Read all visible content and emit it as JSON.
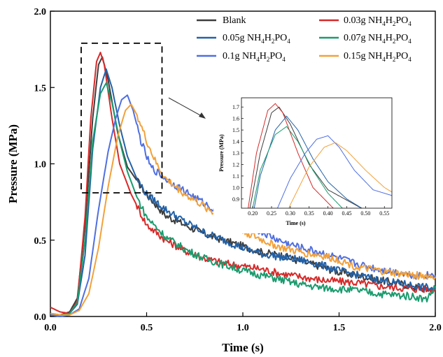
{
  "chart_data": {
    "type": "line",
    "xlabel": "Time (s)",
    "ylabel": "Pressure (MPa)",
    "xlim": [
      0,
      2
    ],
    "ylim": [
      0,
      2
    ],
    "xticks": [
      "0.0",
      "0.5",
      "1.0",
      "1.5",
      "2.0"
    ],
    "yticks": [
      "0.0",
      "0.5",
      "1.0",
      "1.5",
      "2.0"
    ],
    "legend": {
      "position": "top-right",
      "columns": 2,
      "entries": [
        {
          "series": 0,
          "prefix": "Blank",
          "amount": "",
          "formula": false
        },
        {
          "series": 1,
          "prefix": "0.03g NH",
          "amount": "0.03g",
          "formula": true
        },
        {
          "series": 2,
          "prefix": "0.05g NH",
          "amount": "0.05g",
          "formula": true
        },
        {
          "series": 3,
          "prefix": "0.07g NH",
          "amount": "0.07g",
          "formula": true
        },
        {
          "series": 4,
          "prefix": "0.1g NH",
          "amount": "0.1g",
          "formula": true
        },
        {
          "series": 5,
          "prefix": "0.15g NH",
          "amount": "0.15g",
          "formula": true
        }
      ],
      "formula_parts": {
        "sub1": "4",
        "mid1": "H",
        "sub2": "2",
        "mid2": "PO",
        "sub3": "4"
      }
    },
    "series": [
      {
        "name": "Blank",
        "color": "#3d3d3d",
        "points": [
          [
            0,
            0.02
          ],
          [
            0.05,
            0.01
          ],
          [
            0.1,
            0.03
          ],
          [
            0.14,
            0.12
          ],
          [
            0.18,
            0.6
          ],
          [
            0.22,
            1.3
          ],
          [
            0.25,
            1.65
          ],
          [
            0.27,
            1.7
          ],
          [
            0.3,
            1.55
          ],
          [
            0.35,
            1.2
          ],
          [
            0.4,
            0.98
          ],
          [
            0.5,
            0.8
          ],
          [
            0.6,
            0.66
          ],
          [
            0.7,
            0.6
          ],
          [
            0.8,
            0.54
          ],
          [
            0.9,
            0.5
          ],
          [
            1.0,
            0.46
          ],
          [
            1.1,
            0.42
          ],
          [
            1.2,
            0.4
          ],
          [
            1.3,
            0.36
          ],
          [
            1.4,
            0.33
          ],
          [
            1.5,
            0.29
          ],
          [
            1.6,
            0.27
          ],
          [
            1.7,
            0.24
          ],
          [
            1.8,
            0.22
          ],
          [
            1.9,
            0.19
          ],
          [
            2.0,
            0.17
          ]
        ]
      },
      {
        "name": "0.03g NH4H2PO4",
        "color": "#d62a2a",
        "points": [
          [
            0,
            0.06
          ],
          [
            0.05,
            0.03
          ],
          [
            0.1,
            0.02
          ],
          [
            0.14,
            0.1
          ],
          [
            0.18,
            0.65
          ],
          [
            0.21,
            1.3
          ],
          [
            0.24,
            1.67
          ],
          [
            0.26,
            1.73
          ],
          [
            0.28,
            1.65
          ],
          [
            0.32,
            1.3
          ],
          [
            0.36,
            1.0
          ],
          [
            0.42,
            0.8
          ],
          [
            0.5,
            0.6
          ],
          [
            0.6,
            0.5
          ],
          [
            0.7,
            0.43
          ],
          [
            0.8,
            0.38
          ],
          [
            0.9,
            0.35
          ],
          [
            1.0,
            0.33
          ],
          [
            1.1,
            0.31
          ],
          [
            1.2,
            0.28
          ],
          [
            1.3,
            0.26
          ],
          [
            1.4,
            0.24
          ],
          [
            1.5,
            0.23
          ],
          [
            1.6,
            0.22
          ],
          [
            1.7,
            0.2
          ],
          [
            1.8,
            0.19
          ],
          [
            1.9,
            0.18
          ],
          [
            2.0,
            0.18
          ]
        ]
      },
      {
        "name": "0.05g NH4H2PO4",
        "color": "#2362a8",
        "points": [
          [
            0,
            0.01
          ],
          [
            0.05,
            0.0
          ],
          [
            0.1,
            0.02
          ],
          [
            0.14,
            0.08
          ],
          [
            0.18,
            0.4
          ],
          [
            0.22,
            1.1
          ],
          [
            0.26,
            1.5
          ],
          [
            0.29,
            1.62
          ],
          [
            0.32,
            1.5
          ],
          [
            0.36,
            1.25
          ],
          [
            0.4,
            1.05
          ],
          [
            0.45,
            0.9
          ],
          [
            0.5,
            0.8
          ],
          [
            0.6,
            0.7
          ],
          [
            0.7,
            0.62
          ],
          [
            0.8,
            0.55
          ],
          [
            0.9,
            0.5
          ],
          [
            1.0,
            0.45
          ],
          [
            1.1,
            0.41
          ],
          [
            1.2,
            0.39
          ],
          [
            1.3,
            0.37
          ],
          [
            1.4,
            0.34
          ],
          [
            1.5,
            0.3
          ],
          [
            1.6,
            0.27
          ],
          [
            1.7,
            0.24
          ],
          [
            1.8,
            0.22
          ],
          [
            1.9,
            0.2
          ],
          [
            2.0,
            0.18
          ]
        ]
      },
      {
        "name": "0.07g NH4H2PO4",
        "color": "#1a9b6e",
        "points": [
          [
            0,
            0.02
          ],
          [
            0.05,
            0.01
          ],
          [
            0.1,
            0.02
          ],
          [
            0.14,
            0.09
          ],
          [
            0.18,
            0.5
          ],
          [
            0.22,
            1.15
          ],
          [
            0.26,
            1.46
          ],
          [
            0.29,
            1.53
          ],
          [
            0.32,
            1.4
          ],
          [
            0.36,
            1.15
          ],
          [
            0.4,
            0.95
          ],
          [
            0.45,
            0.78
          ],
          [
            0.5,
            0.65
          ],
          [
            0.6,
            0.52
          ],
          [
            0.7,
            0.44
          ],
          [
            0.8,
            0.38
          ],
          [
            0.9,
            0.34
          ],
          [
            1.0,
            0.3
          ],
          [
            1.1,
            0.27
          ],
          [
            1.2,
            0.24
          ],
          [
            1.3,
            0.21
          ],
          [
            1.4,
            0.19
          ],
          [
            1.5,
            0.18
          ],
          [
            1.6,
            0.17
          ],
          [
            1.7,
            0.15
          ],
          [
            1.8,
            0.14
          ],
          [
            1.9,
            0.13
          ],
          [
            1.95,
            0.11
          ],
          [
            2.0,
            0.19
          ]
        ]
      },
      {
        "name": "0.1g NH4H2PO4",
        "color": "#4f6fe0",
        "points": [
          [
            0,
            0.01
          ],
          [
            0.05,
            0.0
          ],
          [
            0.1,
            0.01
          ],
          [
            0.15,
            0.05
          ],
          [
            0.2,
            0.25
          ],
          [
            0.25,
            0.7
          ],
          [
            0.3,
            1.08
          ],
          [
            0.34,
            1.3
          ],
          [
            0.37,
            1.42
          ],
          [
            0.4,
            1.45
          ],
          [
            0.43,
            1.35
          ],
          [
            0.47,
            1.15
          ],
          [
            0.52,
            0.98
          ],
          [
            0.6,
            0.9
          ],
          [
            0.7,
            0.82
          ],
          [
            0.8,
            0.74
          ],
          [
            0.9,
            0.66
          ],
          [
            1.0,
            0.6
          ],
          [
            1.1,
            0.55
          ],
          [
            1.2,
            0.49
          ],
          [
            1.3,
            0.45
          ],
          [
            1.4,
            0.42
          ],
          [
            1.5,
            0.38
          ],
          [
            1.6,
            0.34
          ],
          [
            1.7,
            0.31
          ],
          [
            1.8,
            0.29
          ],
          [
            1.9,
            0.27
          ],
          [
            2.0,
            0.27
          ]
        ]
      },
      {
        "name": "0.15g NH4H2PO4",
        "color": "#f2a13a",
        "points": [
          [
            0,
            0.02
          ],
          [
            0.05,
            0.01
          ],
          [
            0.1,
            0.01
          ],
          [
            0.15,
            0.04
          ],
          [
            0.2,
            0.15
          ],
          [
            0.25,
            0.45
          ],
          [
            0.3,
            0.85
          ],
          [
            0.35,
            1.18
          ],
          [
            0.39,
            1.35
          ],
          [
            0.42,
            1.39
          ],
          [
            0.45,
            1.32
          ],
          [
            0.5,
            1.15
          ],
          [
            0.55,
            1.0
          ],
          [
            0.6,
            0.9
          ],
          [
            0.7,
            0.8
          ],
          [
            0.8,
            0.72
          ],
          [
            0.9,
            0.64
          ],
          [
            1.0,
            0.56
          ],
          [
            1.1,
            0.5
          ],
          [
            1.2,
            0.45
          ],
          [
            1.3,
            0.42
          ],
          [
            1.4,
            0.4
          ],
          [
            1.5,
            0.37
          ],
          [
            1.6,
            0.32
          ],
          [
            1.7,
            0.3
          ],
          [
            1.8,
            0.28
          ],
          [
            1.9,
            0.27
          ],
          [
            2.0,
            0.26
          ]
        ]
      }
    ],
    "zoom_box": {
      "xlim": [
        0.16,
        0.58
      ],
      "ylim": [
        0.81,
        1.79
      ]
    },
    "inset": {
      "xlabel": "Time (s)",
      "ylabel": "Pressure (MPa)",
      "xlim": [
        0.17,
        0.57
      ],
      "ylim": [
        0.82,
        1.78
      ],
      "xticks": [
        "0.20",
        "0.25",
        "0.30",
        "0.35",
        "0.40",
        "0.45",
        "0.50",
        "0.55"
      ],
      "yticks": [
        "0.9",
        "1.0",
        "1.1",
        "1.2",
        "1.3",
        "1.4",
        "1.5",
        "1.6",
        "1.7"
      ]
    }
  }
}
